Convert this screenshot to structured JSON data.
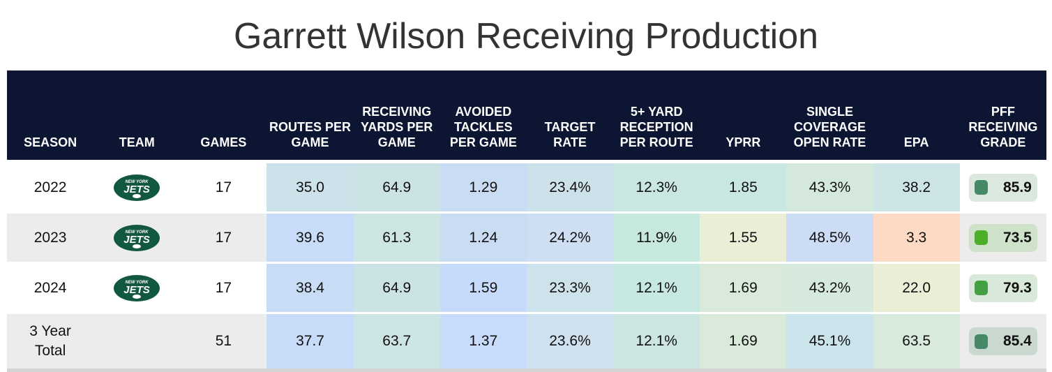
{
  "title": "Garrett Wilson Receiving Production",
  "columns": [
    "SEASON",
    "TEAM",
    "GAMES",
    "ROUTES PER GAME",
    "RECEIVING YARDS PER GAME",
    "AVOIDED TACKLES PER GAME",
    "TARGET RATE",
    "5+ YARD RECEPTION PER ROUTE",
    "YPRR",
    "SINGLE COVERAGE OPEN RATE",
    "EPA",
    "PFF RECEIVING GRADE"
  ],
  "team_logo": {
    "icon": "new-york-jets-logo",
    "text_top": "NEW YORK",
    "text_main": "JETS",
    "color": "#125740"
  },
  "rows": [
    {
      "season": "2022",
      "team": "NYJ",
      "games": "17",
      "routes": "35.0",
      "rec_yds": "64.9",
      "avoided": "1.29",
      "target": "23.4%",
      "five_plus": "12.3%",
      "yprr": "1.85",
      "single_cov": "43.3%",
      "epa": "38.2",
      "grade": "85.9",
      "colors": [
        "#cde1ea",
        "#cce3e6",
        "#c9dcf3",
        "#cde1ea",
        "#c9e6e0",
        "#c8e7e0",
        "#d4e9dc",
        "#cde4e6"
      ],
      "grade_color": "#468966",
      "grade_bg": "#dbe8dd"
    },
    {
      "season": "2023",
      "team": "NYJ",
      "games": "17",
      "routes": "39.6",
      "rec_yds": "61.3",
      "avoided": "1.24",
      "target": "24.2%",
      "five_plus": "11.9%",
      "yprr": "1.55",
      "single_cov": "48.5%",
      "epa": "3.3",
      "grade": "73.5",
      "colors": [
        "#c8dbf8",
        "#cde6e3",
        "#cadcf4",
        "#cfdff3",
        "#c7e8de",
        "#ebeed6",
        "#cbdcf4",
        "#fedac4"
      ],
      "grade_color": "#4caf28",
      "grade_bg": "#cde2c8"
    },
    {
      "season": "2024",
      "team": "NYJ",
      "games": "17",
      "routes": "38.4",
      "rec_yds": "64.9",
      "avoided": "1.59",
      "target": "23.3%",
      "five_plus": "12.1%",
      "yprr": "1.69",
      "single_cov": "43.2%",
      "epa": "22.0",
      "grade": "79.3",
      "colors": [
        "#c9dcf5",
        "#cce3e6",
        "#c6dafb",
        "#cde2ea",
        "#c6e8e0",
        "#d9eadb",
        "#d5e9dc",
        "#ebeed6"
      ],
      "grade_color": "#43a043",
      "grade_bg": "#d8e9da"
    },
    {
      "season": "3 Year Total",
      "team": "",
      "games": "51",
      "routes": "37.7",
      "rec_yds": "63.7",
      "avoided": "1.37",
      "target": "23.6%",
      "five_plus": "12.1%",
      "yprr": "1.69",
      "single_cov": "45.1%",
      "epa": "63.5",
      "grade": "85.4",
      "colors": [
        "#c8dbf8",
        "#cde4e5",
        "#c8dbfa",
        "#cfe0ef",
        "#cce5e1",
        "#d9eadb",
        "#cbe3ea",
        "#d7eadc"
      ],
      "grade_color": "#468966",
      "grade_bg": "#cad9d0"
    }
  ]
}
